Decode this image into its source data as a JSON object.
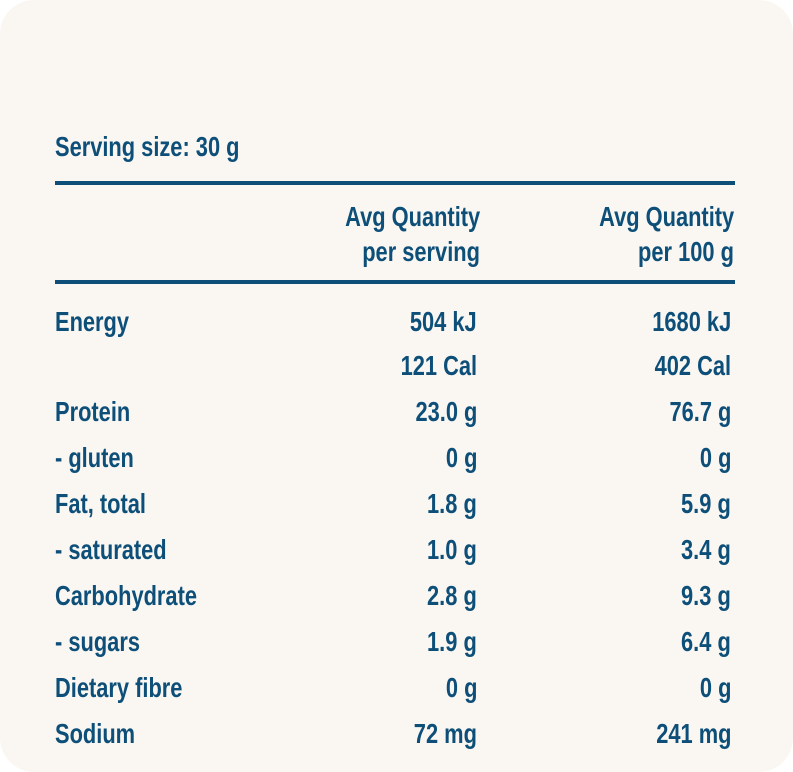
{
  "serving_size": "Serving size: 30 g",
  "headers": {
    "per_serving": [
      "Avg Quantity",
      "per serving"
    ],
    "per_100g": [
      "Avg Quantity",
      "per 100 g"
    ]
  },
  "rows": [
    {
      "label": "Energy",
      "per_serving": "504 kJ",
      "per_100g": "1680 kJ"
    },
    {
      "label": "",
      "per_serving": "121 Cal",
      "per_100g": "402 Cal"
    },
    {
      "label": "Protein",
      "per_serving": "23.0 g",
      "per_100g": "76.7 g"
    },
    {
      "label": "- gluten",
      "per_serving": "0 g",
      "per_100g": "0 g"
    },
    {
      "label": "Fat, total",
      "per_serving": "1.8 g",
      "per_100g": "5.9 g"
    },
    {
      "label": "- saturated",
      "per_serving": "1.0 g",
      "per_100g": "3.4 g"
    },
    {
      "label": "Carbohydrate",
      "per_serving": "2.8 g",
      "per_100g": "9.3 g"
    },
    {
      "label": "- sugars",
      "per_serving": "1.9 g",
      "per_100g": "6.4 g"
    },
    {
      "label": "Dietary fibre",
      "per_serving": "0 g",
      "per_100g": "0 g"
    },
    {
      "label": "Sodium",
      "per_serving": "72 mg",
      "per_100g": "241 mg"
    }
  ],
  "colors": {
    "text": "#0d4f78",
    "background": "#faf7f3"
  }
}
